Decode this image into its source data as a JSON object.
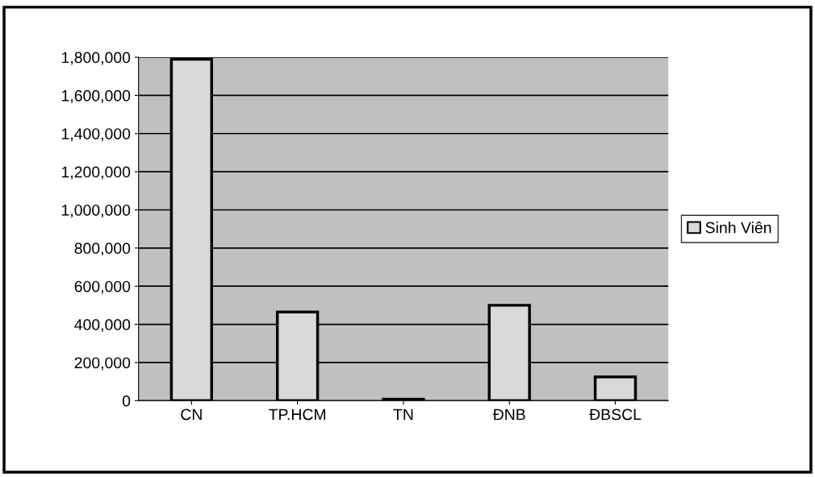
{
  "chart_data": {
    "type": "bar",
    "categories": [
      "CN",
      "TP.HCM",
      "TN",
      "ĐNB",
      "ĐBSCL"
    ],
    "series": [
      {
        "name": "Sinh Viên",
        "color": "#d9d9d9",
        "values": [
          1790000,
          465000,
          8000,
          500000,
          125000
        ]
      }
    ],
    "ylim": [
      0,
      1800000
    ],
    "yticks": [
      {
        "value": 0,
        "label": "0"
      },
      {
        "value": 200000,
        "label": "200,000"
      },
      {
        "value": 400000,
        "label": "400,000"
      },
      {
        "value": 600000,
        "label": "600,000"
      },
      {
        "value": 800000,
        "label": "800,000"
      },
      {
        "value": 1000000,
        "label": "1,000,000"
      },
      {
        "value": 1200000,
        "label": "1,200,000"
      },
      {
        "value": 1400000,
        "label": "1,400,000"
      },
      {
        "value": 1600000,
        "label": "1,600,000"
      },
      {
        "value": 1800000,
        "label": "1,800,000"
      }
    ],
    "grid": "y",
    "legend": "right"
  }
}
